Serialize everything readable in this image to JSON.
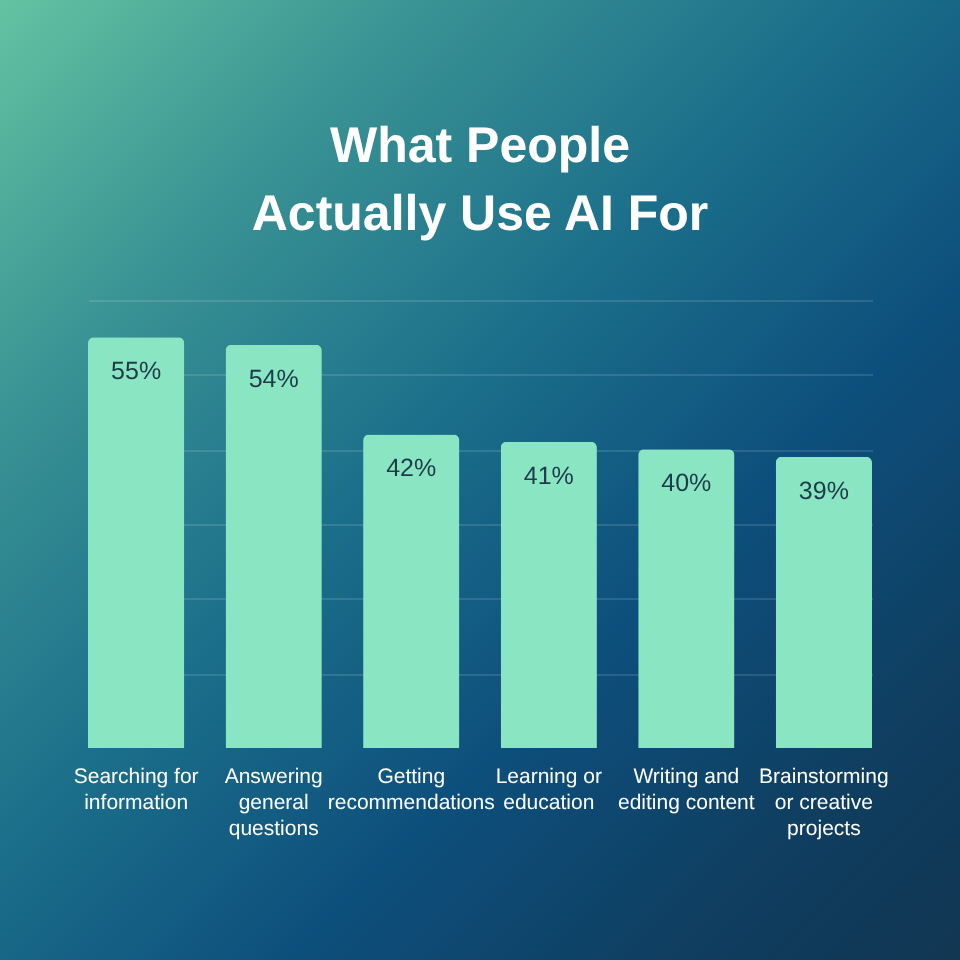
{
  "chart_data": {
    "type": "bar",
    "title": "What People Actually Use AI For",
    "categories": [
      "Searching for information",
      "Answering general questions",
      "Getting recommendations",
      "Learning or education",
      "Writing and editing content",
      "Brainstorming or creative projects"
    ],
    "values": [
      55,
      54,
      42,
      41,
      40,
      39
    ],
    "value_labels": [
      "55%",
      "54%",
      "42%",
      "41%",
      "40%",
      "39%"
    ],
    "color": "#8ae5c3",
    "ylim": [
      0,
      60
    ],
    "yticks": [
      {
        "value": 10,
        "label": null
      },
      {
        "value": 20,
        "label": null
      },
      {
        "value": 30,
        "label": null
      },
      {
        "value": 40,
        "label": null
      },
      {
        "value": 50,
        "label": null
      },
      {
        "value": 60,
        "label": null
      }
    ],
    "grid": "y",
    "tick_labels": "x"
  }
}
